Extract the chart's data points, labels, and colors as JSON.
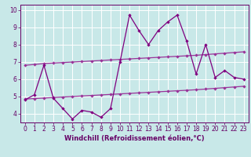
{
  "x": [
    0,
    1,
    2,
    3,
    4,
    5,
    6,
    7,
    8,
    9,
    10,
    11,
    12,
    13,
    14,
    15,
    16,
    17,
    18,
    19,
    20,
    21,
    22,
    23
  ],
  "y_main": [
    4.8,
    5.1,
    6.8,
    4.9,
    4.3,
    3.7,
    4.2,
    4.1,
    3.8,
    4.3,
    7.0,
    9.7,
    8.8,
    8.0,
    8.8,
    9.3,
    9.7,
    8.2,
    6.3,
    8.0,
    6.1,
    6.5,
    6.1,
    6.0
  ],
  "y_upper": [
    6.8,
    6.85,
    6.9,
    6.93,
    6.96,
    6.99,
    7.02,
    7.05,
    7.08,
    7.11,
    7.14,
    7.17,
    7.2,
    7.23,
    7.26,
    7.29,
    7.32,
    7.35,
    7.38,
    7.42,
    7.46,
    7.5,
    7.54,
    7.58
  ],
  "y_lower": [
    4.85,
    4.88,
    4.91,
    4.94,
    4.97,
    5.0,
    5.03,
    5.06,
    5.09,
    5.12,
    5.15,
    5.18,
    5.21,
    5.24,
    5.27,
    5.3,
    5.33,
    5.36,
    5.39,
    5.43,
    5.47,
    5.51,
    5.55,
    5.59
  ],
  "color_main": "#800080",
  "color_upper": "#993399",
  "color_lower": "#993399",
  "background_color": "#c8e8e8",
  "grid_color": "#aacccc",
  "xlabel": "Windchill (Refroidissement éolien,°C)",
  "xlim": [
    -0.5,
    23.5
  ],
  "ylim": [
    3.5,
    10.3
  ],
  "yticks": [
    4,
    5,
    6,
    7,
    8,
    9,
    10
  ],
  "xticks": [
    0,
    1,
    2,
    3,
    4,
    5,
    6,
    7,
    8,
    9,
    10,
    11,
    12,
    13,
    14,
    15,
    16,
    17,
    18,
    19,
    20,
    21,
    22,
    23
  ],
  "marker": "D",
  "markersize": 2.2,
  "linewidth": 0.9,
  "tick_fontsize": 5.5,
  "xlabel_fontsize": 6.0
}
